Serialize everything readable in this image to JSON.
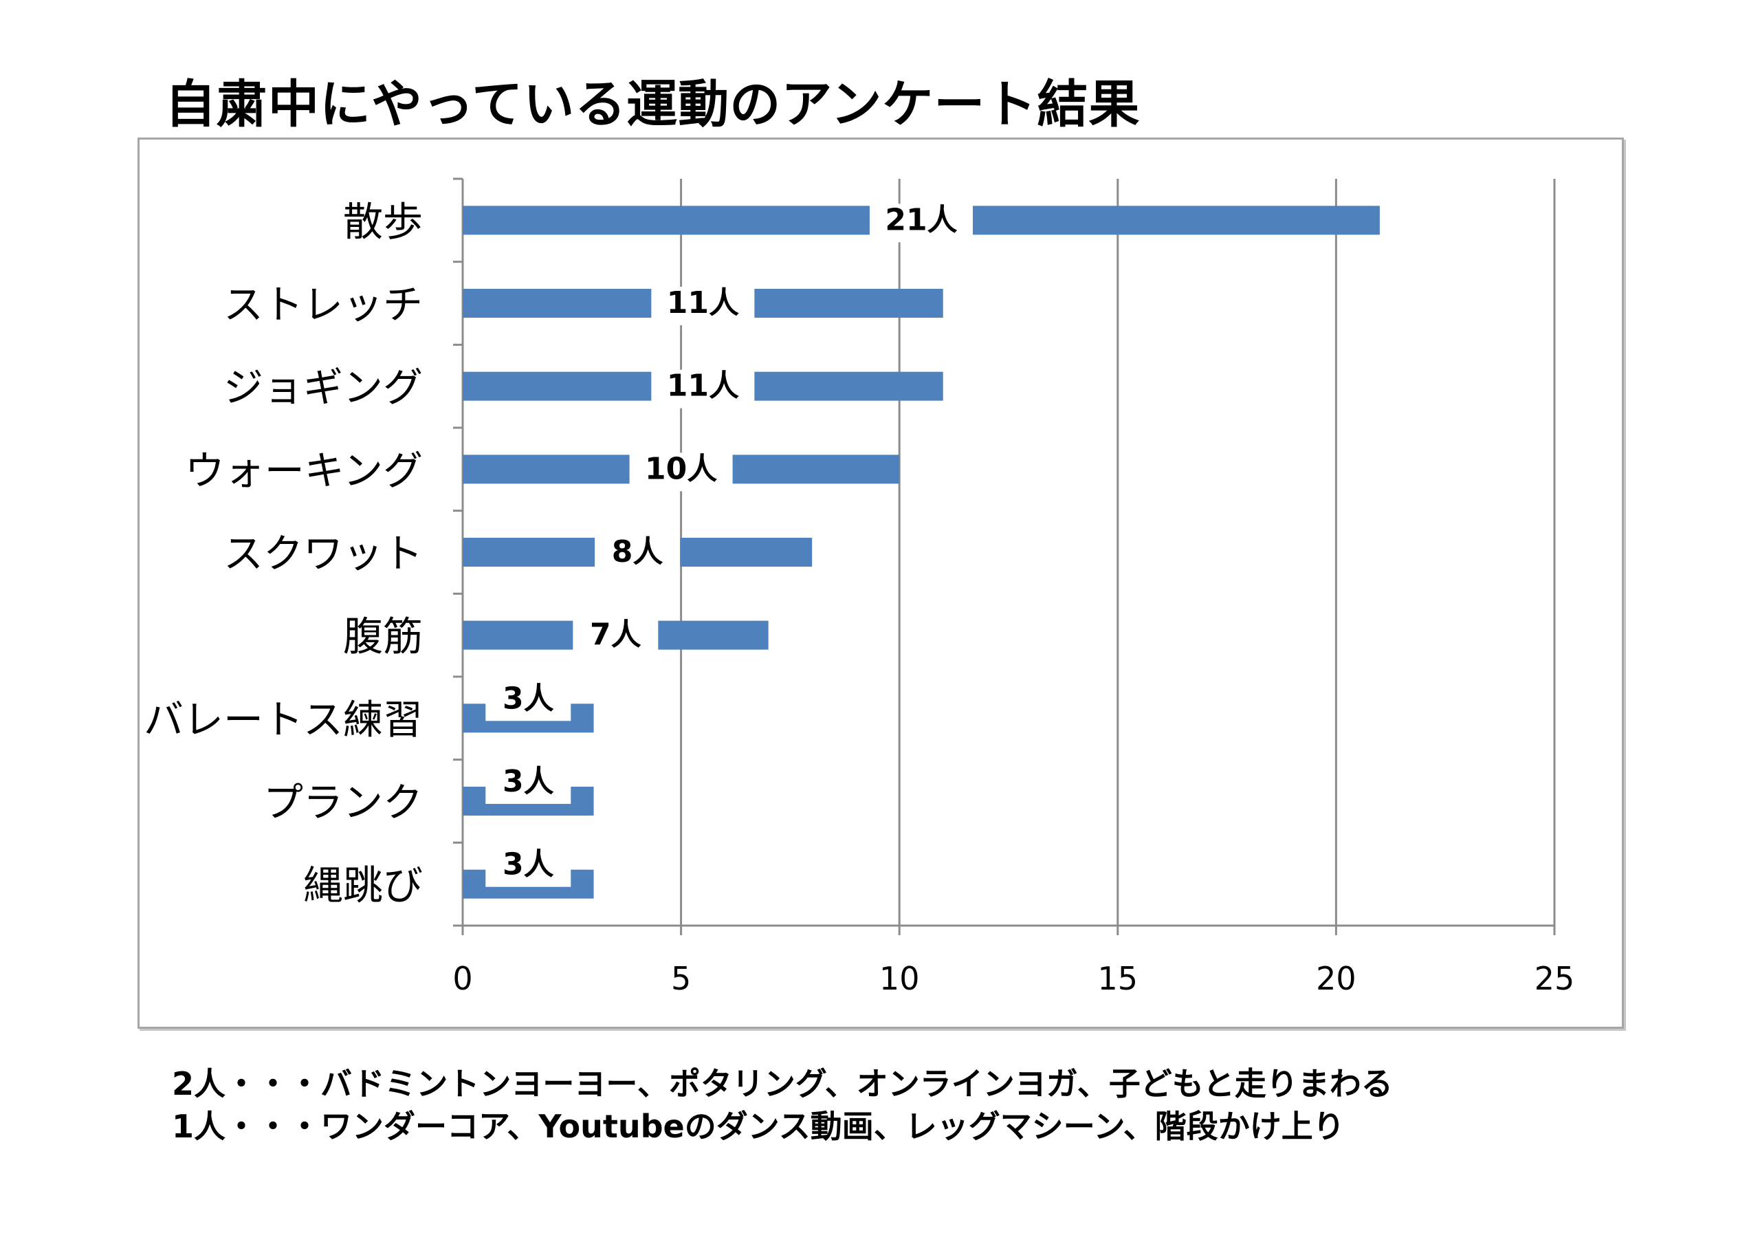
{
  "title": "自粛中にやっている運動のアンケート結果",
  "chart_data": {
    "type": "bar",
    "orientation": "horizontal",
    "categories": [
      "散歩",
      "ストレッチ",
      "ジョギング",
      "ウォーキング",
      "スクワット",
      "腹筋",
      "バレートス練習",
      "プランク",
      "縄跳び"
    ],
    "values": [
      21,
      11,
      11,
      10,
      8,
      7,
      3,
      3,
      3
    ],
    "data_labels": [
      "21人",
      "11人",
      "11人",
      "10人",
      "8人",
      "7人",
      "3人",
      "3人",
      "3人"
    ],
    "xlim": [
      0,
      25
    ],
    "x_ticks": [
      "0",
      "5",
      "10",
      "15",
      "20",
      "25"
    ],
    "x_tick_values": [
      0,
      5,
      10,
      15,
      20,
      25
    ],
    "grid": true,
    "bar_color": "#4f81bd",
    "grid_color": "#8c8c8c"
  },
  "footnotes": [
    "2人・・・バドミントンヨーヨー、ポタリング、オンラインヨガ、子どもと走りまわる",
    "1人・・・ワンダーコア、Youtubeのダンス動画、レッグマシーン、階段かけ上り"
  ]
}
